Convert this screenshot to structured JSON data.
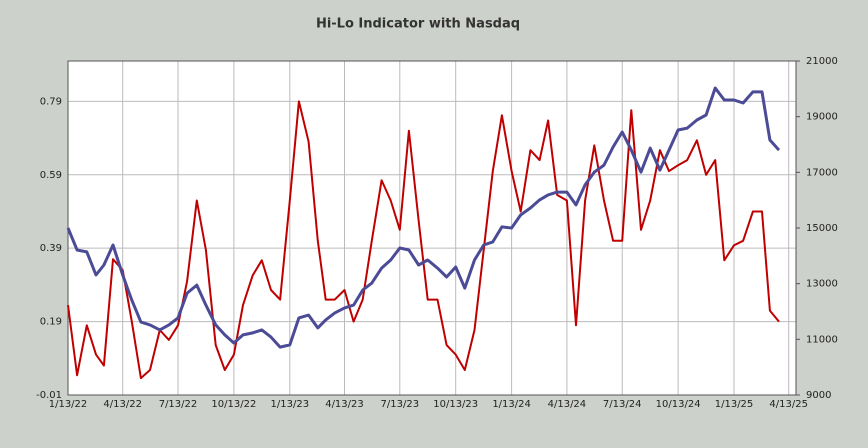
{
  "chart_data": {
    "type": "line",
    "title": "Hi-Lo Indicator with Nasdaq",
    "x": [
      "1/13/22",
      "1/28/22",
      "2/13/22",
      "2/28/22",
      "3/13/22",
      "3/28/22",
      "4/13/22",
      "4/28/22",
      "5/13/22",
      "5/28/22",
      "6/13/22",
      "6/28/22",
      "7/13/22",
      "7/28/22",
      "8/13/22",
      "8/28/22",
      "9/13/22",
      "9/28/22",
      "10/13/22",
      "10/28/22",
      "11/13/22",
      "11/28/22",
      "12/13/22",
      "12/28/22",
      "1/13/23",
      "1/28/23",
      "2/13/23",
      "2/28/23",
      "3/13/23",
      "3/28/23",
      "4/13/23",
      "4/28/23",
      "5/13/23",
      "5/28/23",
      "6/13/23",
      "6/28/23",
      "7/13/23",
      "7/28/23",
      "8/13/23",
      "8/28/23",
      "9/13/23",
      "9/28/23",
      "10/13/23",
      "10/28/23",
      "11/13/23",
      "11/28/23",
      "12/13/23",
      "12/28/23",
      "1/13/24",
      "1/28/24",
      "2/13/24",
      "2/28/24",
      "3/13/24",
      "3/28/24",
      "4/13/24",
      "4/28/24",
      "5/13/24",
      "5/28/24",
      "6/13/24",
      "6/28/24",
      "7/13/24",
      "7/28/24",
      "8/13/24",
      "8/28/24",
      "9/13/24",
      "9/28/24",
      "10/13/24",
      "10/28/24",
      "11/13/24",
      "11/28/24",
      "12/13/24",
      "12/28/24",
      "1/13/25",
      "1/28/25",
      "2/13/25",
      "2/28/25",
      "3/13/25",
      "3/28/25"
    ],
    "series": [
      {
        "color": "#c00000",
        "axis": "y",
        "values": [
          0.235,
          0.044,
          0.18,
          0.1,
          0.07,
          0.36,
          0.33,
          0.19,
          0.036,
          0.058,
          0.167,
          0.14,
          0.18,
          0.3,
          0.52,
          0.385,
          0.126,
          0.058,
          0.1,
          0.235,
          0.316,
          0.357,
          0.276,
          0.25,
          0.52,
          0.79,
          0.68,
          0.41,
          0.25,
          0.25,
          0.276,
          0.19,
          0.25,
          0.41,
          0.575,
          0.52,
          0.44,
          0.71,
          0.466,
          0.25,
          0.25,
          0.126,
          0.1,
          0.058,
          0.167,
          0.385,
          0.6,
          0.752,
          0.6,
          0.49,
          0.657,
          0.63,
          0.738,
          0.535,
          0.52,
          0.18,
          0.52,
          0.67,
          0.52,
          0.41,
          0.41,
          0.766,
          0.44,
          0.52,
          0.657,
          0.6,
          0.616,
          0.63,
          0.684,
          0.59,
          0.63,
          0.357,
          0.398,
          0.41,
          0.49,
          0.49,
          0.22,
          0.19
        ]
      },
      {
        "color": "#4b4b96",
        "axis": "y2",
        "values": [
          15000,
          14210,
          14140,
          13310,
          13670,
          14390,
          13310,
          12410,
          11620,
          11520,
          11340,
          11520,
          11770,
          12660,
          12950,
          12230,
          11520,
          11160,
          10870,
          11160,
          11230,
          11340,
          11080,
          10720,
          10800,
          11770,
          11870,
          11410,
          11700,
          11950,
          12130,
          12230,
          12770,
          13020,
          13560,
          13850,
          14280,
          14210,
          13670,
          13850,
          13560,
          13240,
          13600,
          12840,
          13850,
          14390,
          14500,
          15040,
          15000,
          15470,
          15720,
          16010,
          16190,
          16290,
          16290,
          15830,
          16550,
          17010,
          17260,
          17910,
          18450,
          17800,
          17010,
          17870,
          17080,
          17800,
          18520,
          18590,
          18880,
          19060,
          20030,
          19600,
          19600,
          19490,
          19890,
          19890,
          18160,
          17800
        ]
      }
    ],
    "xlim": [
      "1/13/22",
      "4/25/25"
    ],
    "xticks": [
      "1/13/22",
      "4/13/22",
      "7/13/22",
      "10/13/22",
      "1/13/23",
      "4/13/23",
      "7/13/23",
      "10/13/23",
      "1/13/24",
      "4/13/24",
      "7/13/24",
      "10/13/24",
      "1/13/25",
      "4/13/25"
    ],
    "ylim": [
      -0.01,
      0.9
    ],
    "yticks": [
      -0.01,
      0.19,
      0.39,
      0.59,
      0.79
    ],
    "y2lim": [
      9000,
      21000
    ],
    "y2ticks": [
      9000,
      11000,
      13000,
      15000,
      17000,
      19000,
      21000
    ],
    "grid": true
  }
}
